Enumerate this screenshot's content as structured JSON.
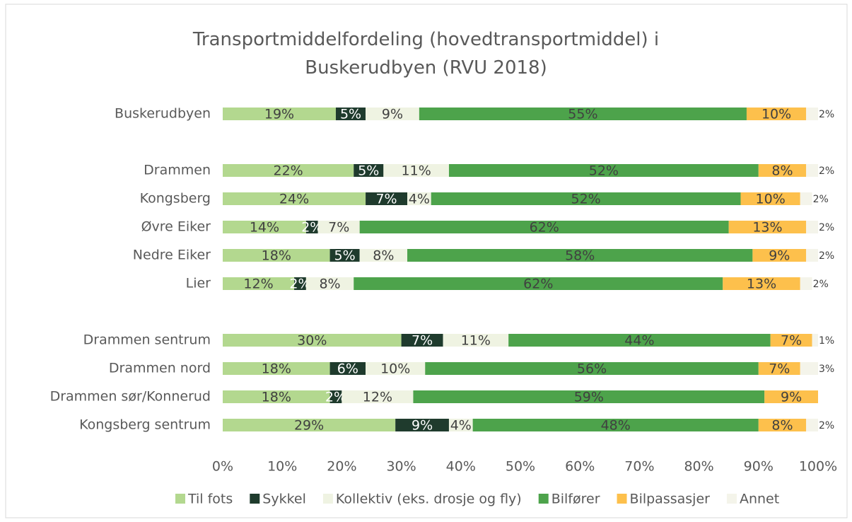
{
  "chart_data": {
    "type": "stacked-bar-horizontal",
    "title": "Transportmiddelfordeling (hovedtransportmiddel) i Buskerudbyen (RVU 2018)",
    "categories": [
      "Buskerudbyen",
      null,
      "Drammen",
      "Kongsberg",
      "Øvre Eiker",
      "Nedre Eiker",
      "Lier",
      null,
      "Drammen sentrum",
      "Drammen nord",
      "Drammen sør/Konnerud",
      "Kongsberg sentrum"
    ],
    "series": [
      {
        "name": "Til fots",
        "color": "#b3d88f",
        "values": [
          19,
          null,
          22,
          24,
          14,
          18,
          12,
          null,
          30,
          18,
          18,
          29
        ],
        "value_labels": [
          "19%",
          null,
          "22%",
          "24%",
          "14%",
          "18%",
          "12%",
          null,
          "30%",
          "18%",
          "18%",
          "29%"
        ]
      },
      {
        "name": "Sykkel",
        "color": "#1f3b2d",
        "values": [
          5,
          null,
          5,
          7,
          2,
          5,
          2,
          null,
          7,
          6,
          2,
          9
        ],
        "value_labels": [
          "5%",
          null,
          "5%",
          "7%",
          "2%",
          "5%",
          "2%",
          null,
          "7%",
          "6%",
          "2%",
          "9%"
        ]
      },
      {
        "name": "Kollektiv (eks. drosje og fly)",
        "color": "#eff3e2",
        "values": [
          9,
          null,
          11,
          4,
          7,
          8,
          8,
          null,
          11,
          10,
          12,
          4
        ],
        "value_labels": [
          "9%",
          null,
          "11%",
          "4%",
          "7%",
          "8%",
          "8%",
          null,
          "11%",
          "10%",
          "12%",
          "4%"
        ]
      },
      {
        "name": "Bilfører",
        "color": "#4da34b",
        "values": [
          55,
          null,
          52,
          52,
          62,
          58,
          62,
          null,
          44,
          56,
          59,
          48
        ],
        "value_labels": [
          "55%",
          null,
          "52%",
          "52%",
          "62%",
          "58%",
          "62%",
          null,
          "44%",
          "56%",
          "59%",
          "48%"
        ]
      },
      {
        "name": "Bilpassasjer",
        "color": "#fdc04c",
        "values": [
          10,
          null,
          8,
          10,
          13,
          9,
          13,
          null,
          7,
          7,
          9,
          8
        ],
        "value_labels": [
          "10%",
          null,
          "8%",
          "10%",
          "13%",
          "9%",
          "13%",
          null,
          "7%",
          "7%",
          "9%",
          "8%"
        ]
      },
      {
        "name": "Annet",
        "color": "#f4f4ea",
        "values": [
          2,
          null,
          2,
          2,
          2,
          2,
          2,
          null,
          1,
          3,
          null,
          2
        ],
        "value_labels": [
          "2%",
          null,
          "2%",
          "2%",
          "2%",
          "2%",
          "2%",
          null,
          "1%",
          "3%",
          null,
          "2%"
        ]
      }
    ],
    "xlim": [
      0,
      100
    ],
    "xticks": [
      {
        "value": 0,
        "label": "0%"
      },
      {
        "value": 10,
        "label": "10%"
      },
      {
        "value": 20,
        "label": "20%"
      },
      {
        "value": 30,
        "label": "30%"
      },
      {
        "value": 40,
        "label": "40%"
      },
      {
        "value": 50,
        "label": "50%"
      },
      {
        "value": 60,
        "label": "60%"
      },
      {
        "value": 70,
        "label": "70%"
      },
      {
        "value": 80,
        "label": "80%"
      },
      {
        "value": 90,
        "label": "90%"
      },
      {
        "value": 100,
        "label": "100%"
      }
    ],
    "legend": "bottom"
  }
}
